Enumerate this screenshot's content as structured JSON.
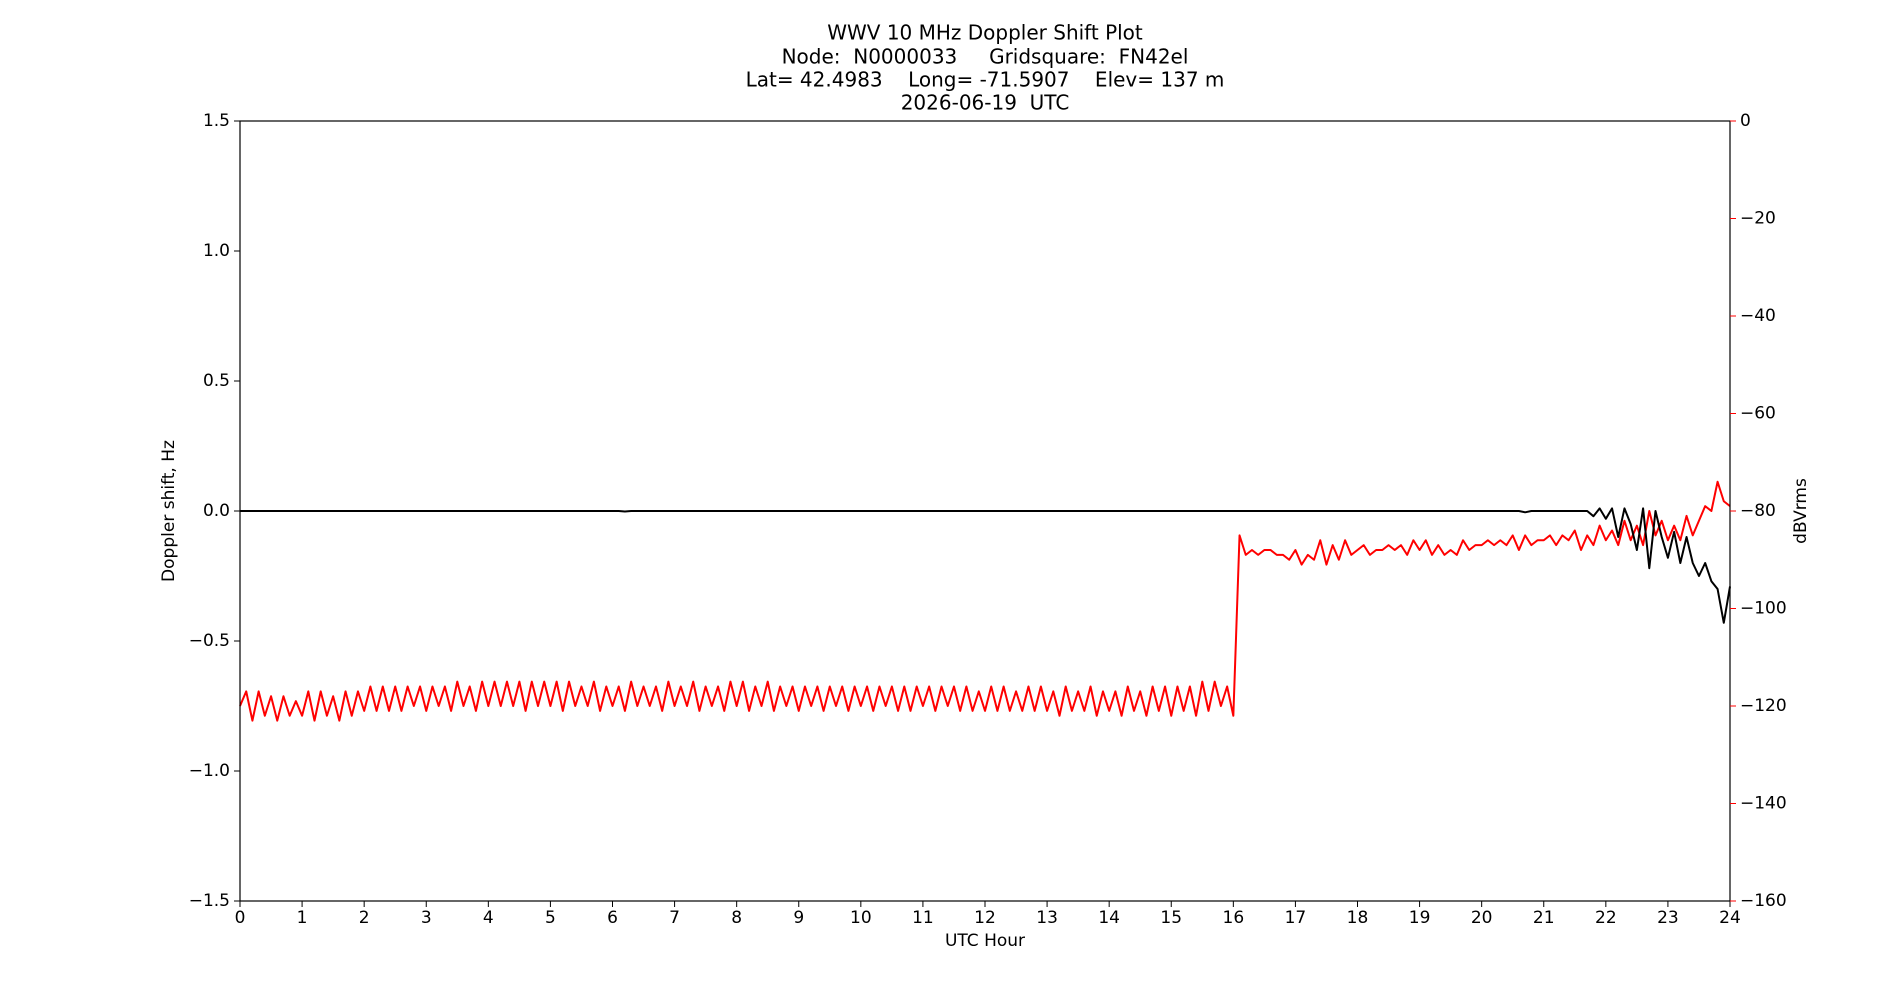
{
  "chart_data": {
    "type": "line",
    "title": "WWV 10 MHz Doppler Shift Plot",
    "subtitle_lines": [
      "Node:  N0000033     Gridsquare:  FN42el",
      "Lat= 42.4983    Long= -71.5907    Elev= 137 m",
      "2026-06-19  UTC"
    ],
    "x_label": "UTC Hour",
    "y_label": "Doppler shift, Hz",
    "y2_label": "dBVrms",
    "y2_color": "#ff0000",
    "xlim": [
      0,
      24
    ],
    "xticks": [
      0,
      1,
      2,
      3,
      4,
      5,
      6,
      7,
      8,
      9,
      10,
      11,
      12,
      13,
      14,
      15,
      16,
      17,
      18,
      19,
      20,
      21,
      22,
      23,
      24
    ],
    "ylim": [
      -1.5,
      1.5
    ],
    "yticks": [
      {
        "value": -1.5,
        "label": "−1.5"
      },
      {
        "value": -1,
        "label": "−1.0"
      },
      {
        "value": -0.5,
        "label": "−0.5"
      },
      {
        "value": 0,
        "label": "0.0"
      },
      {
        "value": 0.5,
        "label": "0.5"
      },
      {
        "value": 1,
        "label": "1.0"
      },
      {
        "value": 1.5,
        "label": "1.5"
      }
    ],
    "y2lim": [
      -160,
      0
    ],
    "y2ticks": [
      {
        "value": -160,
        "label": "−160"
      },
      {
        "value": -140,
        "label": "−140"
      },
      {
        "value": -120,
        "label": "−120"
      },
      {
        "value": -100,
        "label": "−100"
      },
      {
        "value": -80,
        "label": "−80"
      },
      {
        "value": -60,
        "label": "−60"
      },
      {
        "value": -40,
        "label": "−40"
      },
      {
        "value": -20,
        "label": "−20"
      },
      0
    ],
    "x": [
      0,
      0.1,
      0.2,
      0.3,
      0.4,
      0.5,
      0.6,
      0.7,
      0.8,
      0.9,
      1,
      1.1,
      1.2,
      1.3,
      1.4,
      1.5,
      1.6,
      1.7,
      1.8,
      1.9,
      2,
      2.1,
      2.2,
      2.3,
      2.4,
      2.5,
      2.6,
      2.7,
      2.8,
      2.9,
      3,
      3.1,
      3.2,
      3.3,
      3.4,
      3.5,
      3.6,
      3.7,
      3.8,
      3.9,
      4,
      4.1,
      4.2,
      4.3,
      4.4,
      4.5,
      4.6,
      4.7,
      4.8,
      4.9,
      5,
      5.1,
      5.2,
      5.3,
      5.4,
      5.5,
      5.6,
      5.7,
      5.8,
      5.9,
      6,
      6.1,
      6.2,
      6.3,
      6.4,
      6.5,
      6.6,
      6.7,
      6.8,
      6.9,
      7,
      7.1,
      7.2,
      7.3,
      7.4,
      7.5,
      7.6,
      7.7,
      7.8,
      7.9,
      8,
      8.1,
      8.2,
      8.3,
      8.4,
      8.5,
      8.6,
      8.7,
      8.8,
      8.9,
      9,
      9.1,
      9.2,
      9.3,
      9.4,
      9.5,
      9.6,
      9.7,
      9.8,
      9.9,
      10,
      10.1,
      10.2,
      10.3,
      10.4,
      10.5,
      10.6,
      10.7,
      10.8,
      10.9,
      11,
      11.1,
      11.2,
      11.3,
      11.4,
      11.5,
      11.6,
      11.7,
      11.8,
      11.9,
      12,
      12.1,
      12.2,
      12.3,
      12.4,
      12.5,
      12.6,
      12.7,
      12.8,
      12.9,
      13,
      13.1,
      13.2,
      13.3,
      13.4,
      13.5,
      13.6,
      13.7,
      13.8,
      13.9,
      14,
      14.1,
      14.2,
      14.3,
      14.4,
      14.5,
      14.6,
      14.7,
      14.8,
      14.9,
      15,
      15.1,
      15.2,
      15.3,
      15.4,
      15.5,
      15.6,
      15.7,
      15.8,
      15.9,
      16,
      16.1,
      16.2,
      16.3,
      16.4,
      16.5,
      16.6,
      16.7,
      16.8,
      16.9,
      17,
      17.1,
      17.2,
      17.3,
      17.4,
      17.5,
      17.6,
      17.7,
      17.8,
      17.9,
      18,
      18.1,
      18.2,
      18.3,
      18.4,
      18.5,
      18.6,
      18.7,
      18.8,
      18.9,
      19,
      19.1,
      19.2,
      19.3,
      19.4,
      19.5,
      19.6,
      19.7,
      19.8,
      19.9,
      20,
      20.1,
      20.2,
      20.3,
      20.4,
      20.5,
      20.6,
      20.7,
      20.8,
      20.9,
      21,
      21.1,
      21.2,
      21.3,
      21.4,
      21.5,
      21.6,
      21.7,
      21.8,
      21.9,
      22,
      22.1,
      22.2,
      22.3,
      22.4,
      22.5,
      22.6,
      22.7,
      22.8,
      22.9,
      23,
      23.1,
      23.2,
      23.3,
      23.4,
      23.5,
      23.6,
      23.7,
      23.8,
      23.9,
      24
    ],
    "series": [
      {
        "name": "Doppler shift",
        "color": "#000000",
        "axis": "y",
        "values": [
          0,
          0,
          0,
          0,
          0,
          0,
          0,
          0,
          0,
          0,
          0,
          0,
          0,
          0,
          0,
          0,
          0,
          0,
          0,
          0,
          0,
          0,
          0,
          0,
          0,
          0,
          0,
          0,
          0,
          0,
          0,
          0,
          0,
          0,
          0,
          0,
          0,
          0,
          0,
          0,
          0,
          0,
          0,
          0,
          0,
          0,
          0,
          0,
          0,
          0,
          0,
          0,
          0,
          0,
          0,
          0,
          0,
          0,
          0,
          0,
          0,
          0,
          -0.002,
          0,
          0,
          0,
          0,
          0,
          0,
          0,
          0,
          0,
          0,
          0,
          0,
          0,
          0,
          0,
          0,
          0,
          0,
          0,
          0,
          0,
          0,
          0,
          0,
          0,
          0,
          0,
          0,
          0,
          0,
          0,
          0,
          0,
          0,
          0,
          0,
          0,
          0,
          0,
          0,
          0,
          0,
          0,
          0,
          0,
          0,
          0,
          0,
          0,
          0,
          0,
          0,
          0,
          0,
          0,
          0,
          0,
          0,
          0,
          0,
          0,
          0,
          0,
          0,
          0,
          0,
          0,
          0,
          0,
          0,
          0,
          0,
          0,
          0,
          0,
          0,
          0,
          0,
          0,
          0,
          0,
          0,
          0,
          0,
          0,
          0,
          0,
          0,
          0,
          0,
          0,
          0,
          0,
          0,
          0,
          0,
          0,
          0,
          0,
          0,
          0,
          0,
          0,
          0,
          0,
          0,
          0,
          0,
          0,
          0,
          0,
          0,
          0,
          0,
          0,
          0,
          0,
          0,
          0,
          0,
          0,
          0,
          0,
          0,
          0,
          0,
          0,
          0,
          0,
          0,
          0,
          0,
          0,
          0,
          0,
          0,
          0,
          0,
          0,
          0,
          0,
          0,
          0,
          0,
          -0.005,
          0,
          0,
          0,
          0,
          0,
          0,
          0,
          0,
          0,
          0,
          -0.02,
          0.01,
          -0.03,
          0.01,
          -0.1,
          0.01,
          -0.05,
          -0.15,
          0.01,
          -0.22,
          0,
          -0.1,
          -0.18,
          -0.08,
          -0.2,
          -0.1,
          -0.2,
          -0.25,
          -0.2,
          -0.27,
          -0.3,
          -0.43,
          -0.29
        ]
      },
      {
        "name": "dBVrms",
        "color": "#ff0000",
        "axis": "y2",
        "values": [
          -120,
          -117,
          -123,
          -117,
          -122,
          -118,
          -123,
          -118,
          -122,
          -119,
          -122,
          -117,
          -123,
          -117,
          -122,
          -118,
          -123,
          -117,
          -122,
          -117,
          -121,
          -116,
          -121,
          -116,
          -121,
          -116,
          -121,
          -116,
          -120,
          -116,
          -121,
          -116,
          -120,
          -116,
          -121,
          -115,
          -120,
          -116,
          -121,
          -115,
          -120,
          -115,
          -120,
          -115,
          -120,
          -115,
          -121,
          -115,
          -120,
          -115,
          -120,
          -115,
          -121,
          -115,
          -120,
          -116,
          -120,
          -115,
          -121,
          -116,
          -120,
          -116,
          -121,
          -115,
          -120,
          -116,
          -120,
          -116,
          -121,
          -115,
          -120,
          -116,
          -120,
          -115,
          -121,
          -116,
          -120,
          -116,
          -121,
          -115,
          -120,
          -115,
          -121,
          -116,
          -120,
          -115,
          -121,
          -116,
          -120,
          -116,
          -121,
          -116,
          -120,
          -116,
          -121,
          -116,
          -120,
          -116,
          -121,
          -116,
          -120,
          -116,
          -121,
          -116,
          -120,
          -116,
          -121,
          -116,
          -121,
          -116,
          -120,
          -116,
          -121,
          -116,
          -120,
          -116,
          -121,
          -116,
          -121,
          -117,
          -121,
          -116,
          -121,
          -116,
          -121,
          -117,
          -121,
          -116,
          -121,
          -116,
          -121,
          -117,
          -122,
          -116,
          -121,
          -117,
          -121,
          -116,
          -122,
          -117,
          -121,
          -117,
          -122,
          -116,
          -121,
          -117,
          -122,
          -116,
          -121,
          -116,
          -122,
          -116,
          -121,
          -116,
          -122,
          -115,
          -121,
          -115,
          -120,
          -116,
          -122,
          -85,
          -89,
          -88,
          -89,
          -88,
          -88,
          -89,
          -89,
          -90,
          -88,
          -91,
          -89,
          -90,
          -86,
          -91,
          -87,
          -90,
          -86,
          -89,
          -88,
          -87,
          -89,
          -88,
          -88,
          -87,
          -88,
          -87,
          -89,
          -86,
          -88,
          -86,
          -89,
          -87,
          -89,
          -88,
          -89,
          -86,
          -88,
          -87,
          -87,
          -86,
          -87,
          -86,
          -87,
          -85,
          -88,
          -85,
          -87,
          -86,
          -86,
          -85,
          -87,
          -85,
          -86,
          -84,
          -88,
          -85,
          -87,
          -83,
          -86,
          -84,
          -87,
          -82,
          -86,
          -83,
          -87,
          -80,
          -85,
          -82,
          -86,
          -83,
          -86,
          -81,
          -85,
          -82,
          -79,
          -80,
          -74,
          -78,
          -79
        ]
      }
    ]
  }
}
